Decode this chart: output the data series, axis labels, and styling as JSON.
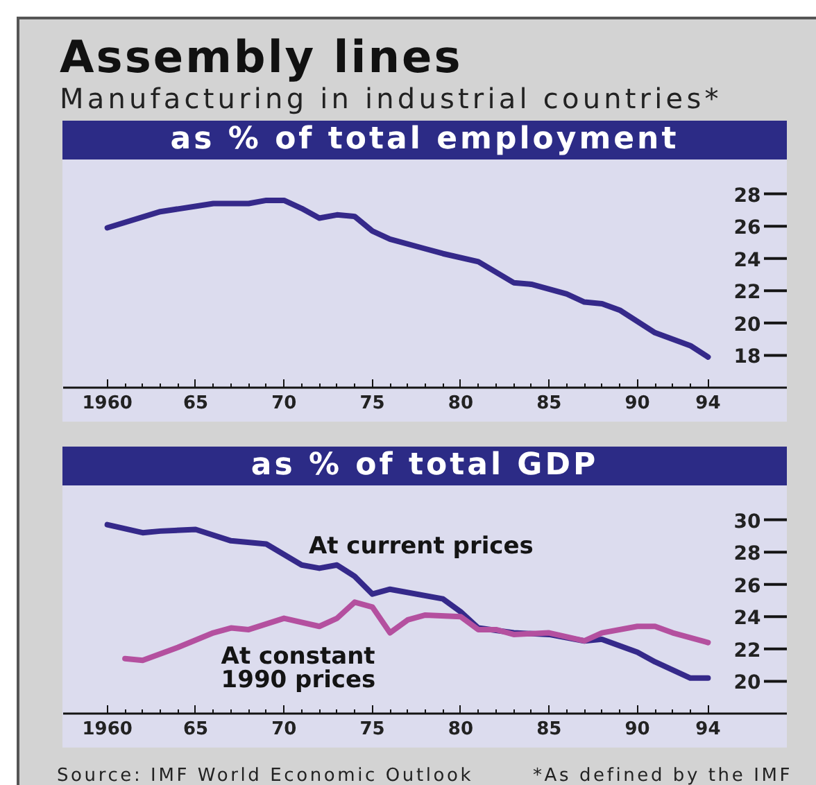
{
  "chart_data": [
    {
      "type": "line",
      "title": "Assembly lines",
      "subtitle": "Manufacturing in industrial countries*",
      "ylabel": "as % of total employment",
      "x": [
        1960,
        1963,
        1966,
        1968,
        1969,
        1970,
        1971,
        1972,
        1973,
        1974,
        1975,
        1976,
        1978,
        1979,
        1981,
        1983,
        1984,
        1986,
        1987,
        1988,
        1989,
        1991,
        1993,
        1994
      ],
      "series": [
        {
          "color": "#35298a",
          "values": [
            25.9,
            26.9,
            27.4,
            27.4,
            27.6,
            27.6,
            27.1,
            26.5,
            26.7,
            26.6,
            25.7,
            25.2,
            24.6,
            24.3,
            23.8,
            22.5,
            22.4,
            21.8,
            21.3,
            21.2,
            20.8,
            19.4,
            18.6,
            17.9
          ]
        }
      ],
      "xlim": [
        1957.5,
        1998.5
      ],
      "xticks": [
        1960,
        {
          "value": 1965,
          "label": "65"
        },
        {
          "value": 1970,
          "label": "70"
        },
        {
          "value": 1975,
          "label": "75"
        },
        {
          "value": 1980,
          "label": "80"
        },
        {
          "value": 1985,
          "label": "85"
        },
        {
          "value": 1990,
          "label": "90"
        },
        {
          "value": 1994,
          "label": "94"
        }
      ],
      "ylim": [
        16,
        30
      ],
      "yticks": [
        18,
        20,
        22,
        24,
        26,
        28
      ]
    },
    {
      "type": "line",
      "ylabel": "as % of total GDP",
      "series": [
        {
          "name": "At current prices",
          "color": "#35298a",
          "x": [
            1960,
            1962,
            1963,
            1965,
            1967,
            1969,
            1971,
            1972,
            1973,
            1974,
            1975,
            1976,
            1979,
            1980,
            1981,
            1983,
            1985,
            1987,
            1988,
            1990,
            1991,
            1993,
            1994
          ],
          "values": [
            29.7,
            29.2,
            29.3,
            29.4,
            28.7,
            28.5,
            27.2,
            27.0,
            27.2,
            26.5,
            25.4,
            25.7,
            25.1,
            24.3,
            23.3,
            23.0,
            22.9,
            22.5,
            22.6,
            21.8,
            21.2,
            20.2,
            20.2
          ]
        },
        {
          "name": "At constant 1990 prices",
          "color": "#b4509f",
          "x": [
            1961,
            1962,
            1964,
            1966,
            1967,
            1968,
            1970,
            1972,
            1973,
            1974,
            1975,
            1976,
            1977,
            1978,
            1980,
            1981,
            1982,
            1983,
            1985,
            1987,
            1988,
            1990,
            1991,
            1992,
            1994
          ],
          "values": [
            21.4,
            21.3,
            22.1,
            23.0,
            23.3,
            23.2,
            23.9,
            23.4,
            23.9,
            24.9,
            24.6,
            23.0,
            23.8,
            24.1,
            24.0,
            23.2,
            23.2,
            22.9,
            23.0,
            22.5,
            23.0,
            23.4,
            23.4,
            23.0,
            22.4
          ]
        }
      ],
      "xlim": [
        1957.5,
        1998.5
      ],
      "xticks": [
        1960,
        {
          "value": 1965,
          "label": "65"
        },
        {
          "value": 1970,
          "label": "70"
        },
        {
          "value": 1975,
          "label": "75"
        },
        {
          "value": 1980,
          "label": "80"
        },
        {
          "value": 1985,
          "label": "85"
        },
        {
          "value": 1990,
          "label": "90"
        },
        {
          "value": 1994,
          "label": "94"
        }
      ],
      "ylim": [
        18,
        32
      ],
      "yticks": [
        20,
        22,
        24,
        26,
        28,
        30
      ],
      "annotations": [
        "Source: IMF World Economic Outlook",
        "*As defined by the IMF"
      ]
    }
  ]
}
